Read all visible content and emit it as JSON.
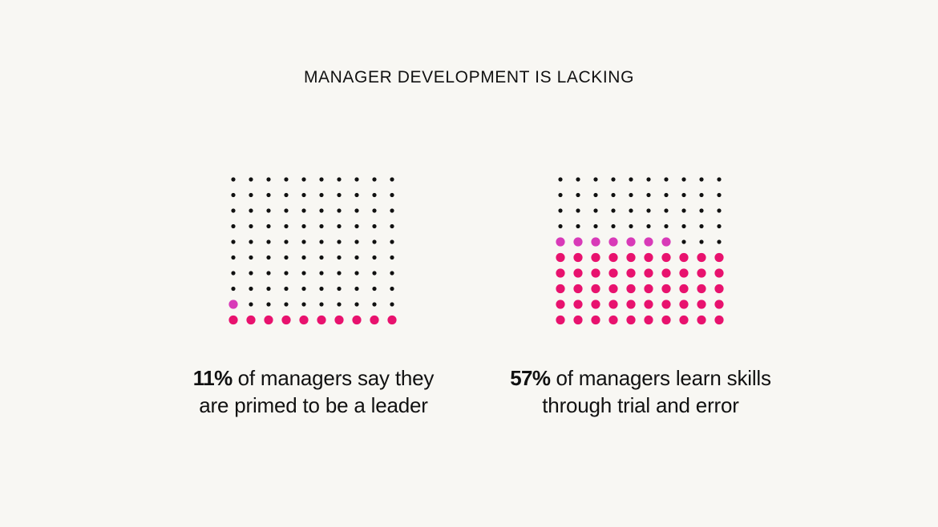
{
  "title": "MANAGER DEVELOPMENT IS LACKING",
  "colors": {
    "background": "#f8f7f3",
    "base_dot": "#111111",
    "primary_dot": "#e8126e",
    "partial_dot": "#d83ab8"
  },
  "chart_data": [
    {
      "type": "waffle",
      "grid": {
        "rows": 10,
        "cols": 10
      },
      "value_percent": 11,
      "caption": {
        "percent": "11%",
        "line1": "of managers say they",
        "line2": "are primed to be a leader"
      }
    },
    {
      "type": "waffle",
      "grid": {
        "rows": 10,
        "cols": 10
      },
      "value_percent": 57,
      "caption": {
        "percent": "57%",
        "line1": "of managers learn skills",
        "line2": "through trial and error"
      }
    }
  ]
}
